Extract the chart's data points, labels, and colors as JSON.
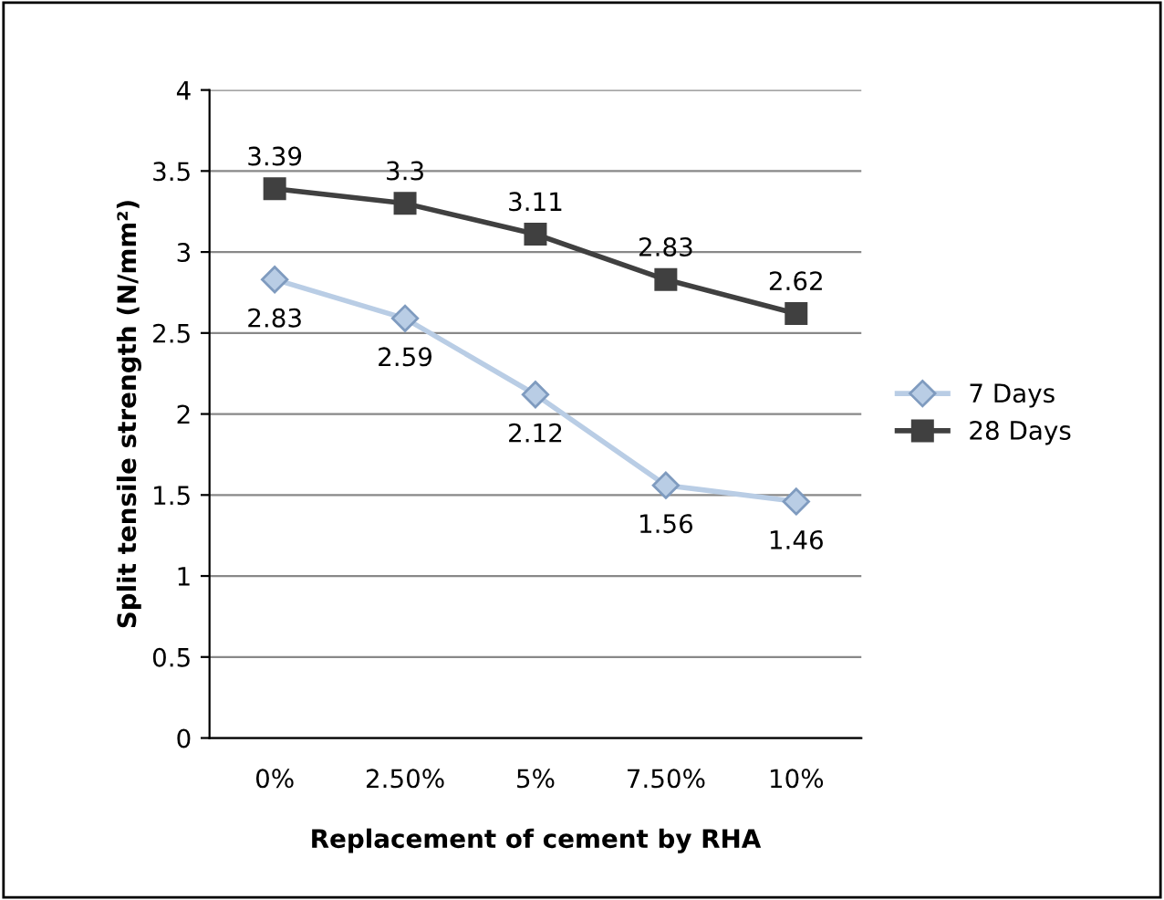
{
  "chart_data": {
    "type": "line",
    "xlabel": "Replacement of cement by RHA",
    "ylabel": "Split tensile strength (N/mm²)",
    "categories": [
      "0%",
      "2.50%",
      "5%",
      "7.50%",
      "10%"
    ],
    "series": [
      {
        "name": "7 Days",
        "color": "#b9cde5",
        "marker": "diamond",
        "values": [
          2.83,
          2.59,
          2.12,
          1.56,
          1.46
        ]
      },
      {
        "name": "28 Days",
        "color": "#404040",
        "marker": "square",
        "values": [
          3.39,
          3.3,
          3.11,
          2.83,
          2.62
        ]
      }
    ],
    "ylim": [
      0,
      4
    ],
    "yticks": [
      0,
      0.5,
      1,
      1.5,
      2,
      2.5,
      3,
      3.5,
      4
    ],
    "grid": "y",
    "legend": "right",
    "data_labels": true,
    "line_style": "solid"
  }
}
